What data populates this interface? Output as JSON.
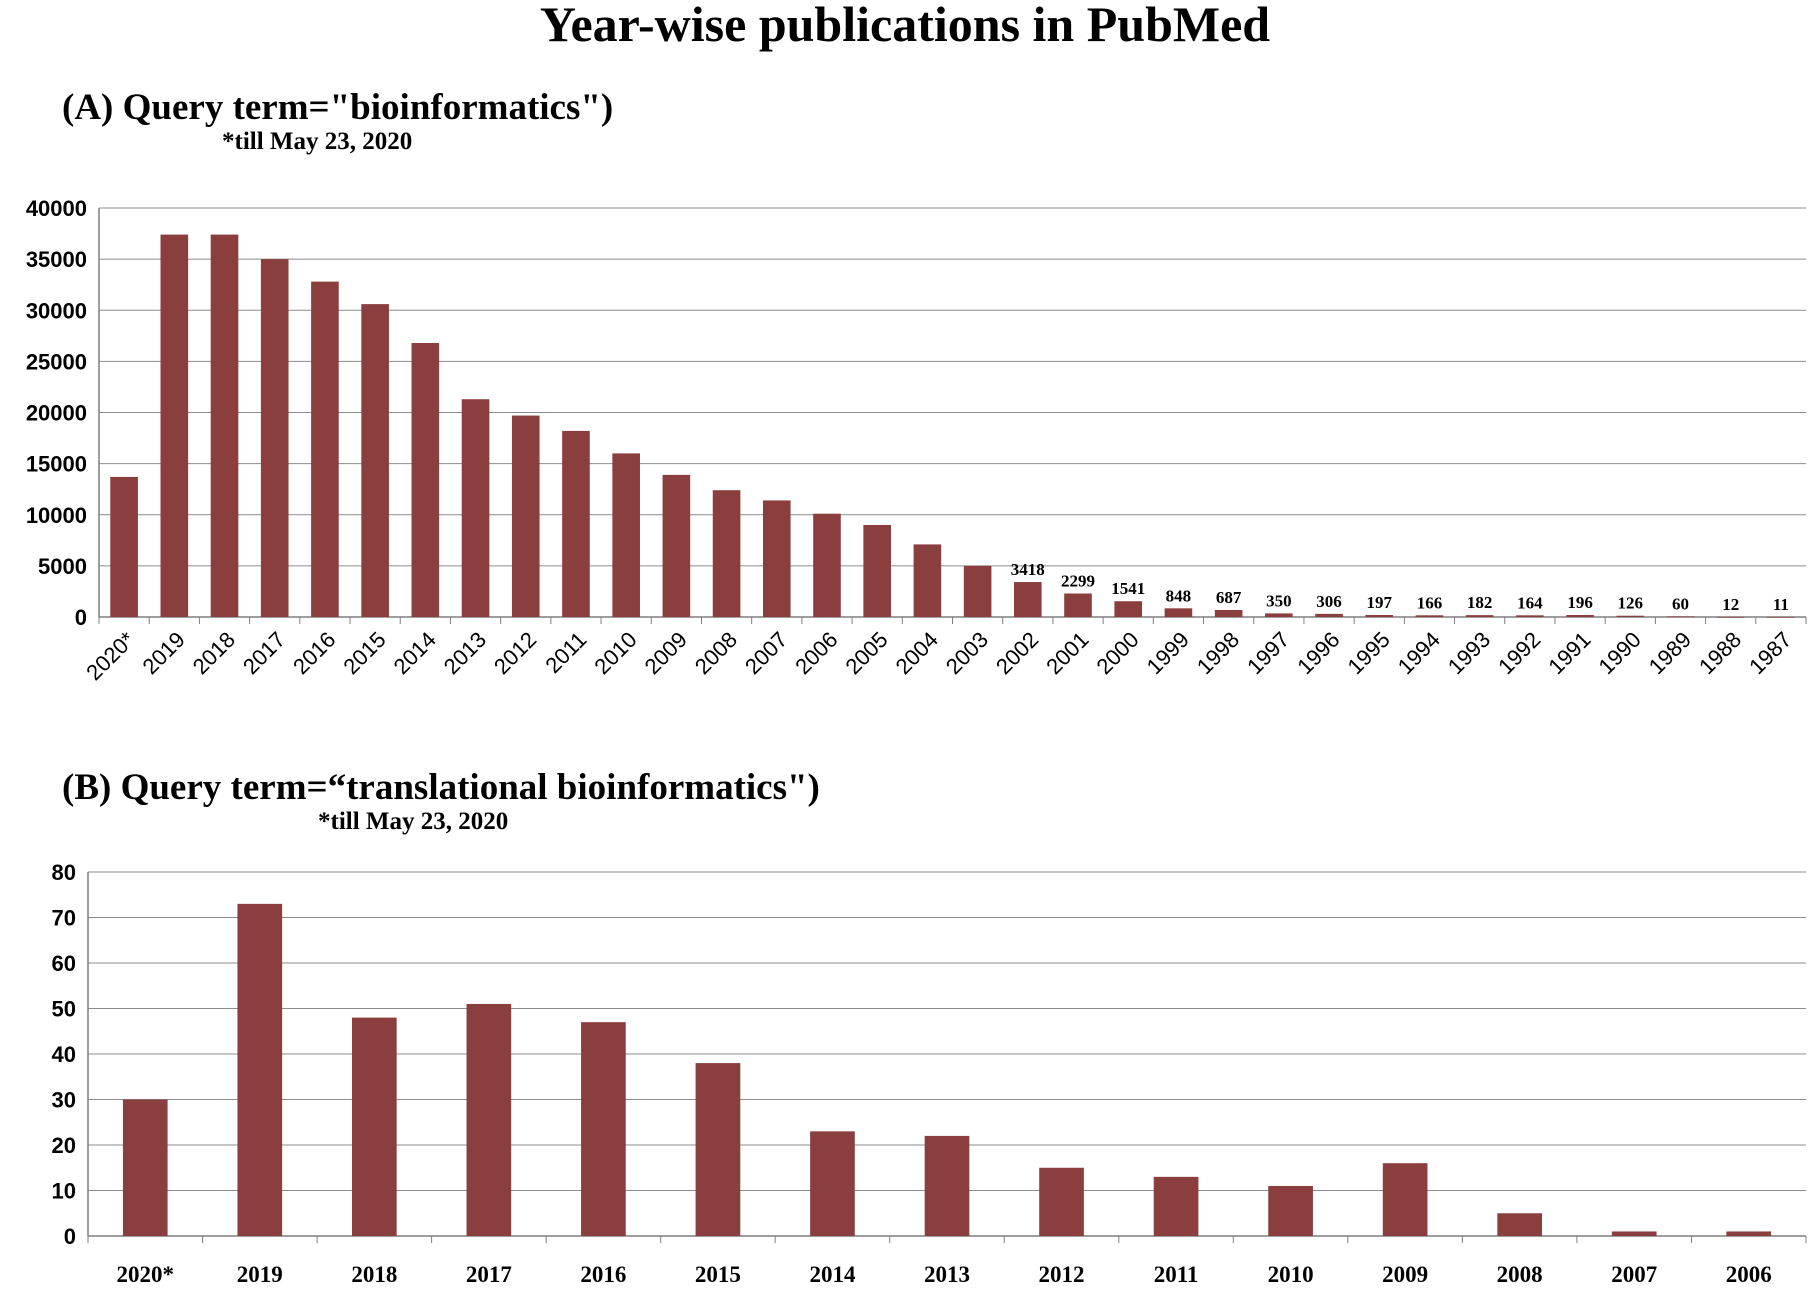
{
  "title": "Year-wise publications in PubMed",
  "colors": {
    "bar": "#8B3E3E",
    "grid": "#8c8c8c",
    "axis": "#7f7f7f"
  },
  "chart_data": [
    {
      "type": "bar",
      "panel_title": "(A) Query term=\"bioinformatics\")",
      "note": "*till May 23, 2020",
      "xlabel": "",
      "ylabel": "",
      "ylim": [
        0,
        40000
      ],
      "yticks": [
        0,
        5000,
        10000,
        15000,
        20000,
        25000,
        30000,
        35000,
        40000
      ],
      "grid": true,
      "categories": [
        "2020*",
        "2019",
        "2018",
        "2017",
        "2016",
        "2015",
        "2014",
        "2013",
        "2012",
        "2011",
        "2010",
        "2009",
        "2008",
        "2007",
        "2006",
        "2005",
        "2004",
        "2003",
        "2002",
        "2001",
        "2000",
        "1999",
        "1998",
        "1997",
        "1996",
        "1995",
        "1994",
        "1993",
        "1992",
        "1991",
        "1990",
        "1989",
        "1988",
        "1987"
      ],
      "values": [
        13700,
        37400,
        37400,
        35000,
        32800,
        30600,
        26800,
        21300,
        19700,
        18200,
        16000,
        13900,
        12400,
        11400,
        10100,
        9000,
        7100,
        5000,
        3418,
        2299,
        1541,
        848,
        687,
        350,
        306,
        197,
        166,
        182,
        164,
        196,
        126,
        60,
        12,
        11
      ],
      "data_labels": [
        "",
        "",
        "",
        "",
        "",
        "",
        "",
        "",
        "",
        "",
        "",
        "",
        "",
        "",
        "",
        "",
        "",
        "",
        "3418",
        "2299",
        "1541",
        "848",
        "687",
        "350",
        "306",
        "197",
        "166",
        "182",
        "164",
        "196",
        "126",
        "60",
        "12",
        "11"
      ]
    },
    {
      "type": "bar",
      "panel_title": "(B) Query term=“translational bioinformatics\")",
      "note": "*till May 23, 2020",
      "xlabel": "",
      "ylabel": "",
      "ylim": [
        0,
        80
      ],
      "yticks": [
        0,
        10,
        20,
        30,
        40,
        50,
        60,
        70,
        80
      ],
      "grid": true,
      "categories": [
        "2020*",
        "2019",
        "2018",
        "2017",
        "2016",
        "2015",
        "2014",
        "2013",
        "2012",
        "2011",
        "2010",
        "2009",
        "2008",
        "2007",
        "2006"
      ],
      "values": [
        30,
        73,
        48,
        51,
        47,
        38,
        23,
        22,
        15,
        13,
        11,
        16,
        5,
        1,
        1
      ]
    }
  ]
}
